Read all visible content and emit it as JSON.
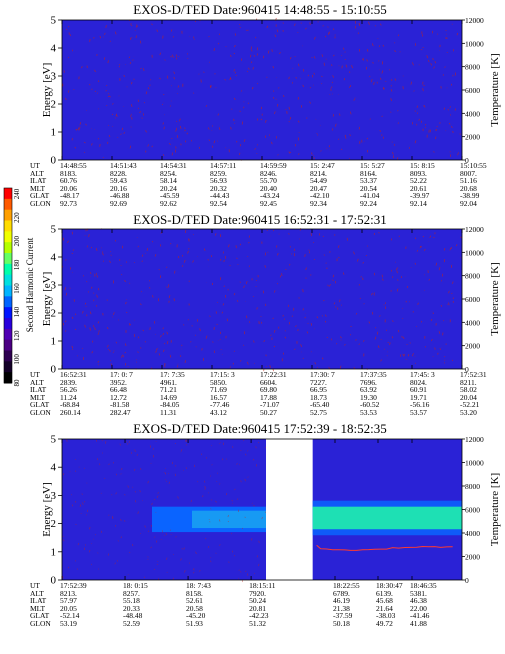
{
  "colorbar": {
    "label": "Second Harmonic Current",
    "ticks": [
      "240",
      "220",
      "200",
      "180",
      "160",
      "140",
      "120",
      "100",
      "80"
    ],
    "colors": [
      "#ff0000",
      "#ff5a00",
      "#ffa000",
      "#ffdc00",
      "#f0ff00",
      "#b4ff00",
      "#64ff64",
      "#00ffaa",
      "#00e0e0",
      "#00b4ff",
      "#0064ff",
      "#0014ff",
      "#2800dc",
      "#5000b4",
      "#4b0082",
      "#2d0050",
      "#140028",
      "#000000"
    ]
  },
  "panels": [
    {
      "title": "EXOS-D/TED   Date:960415   14:48:55 - 15:10:55",
      "ylabel": "Energy [eV]",
      "y2label": "Temperature [K]",
      "yticks": [
        "0",
        "1",
        "2",
        "3",
        "4",
        "5"
      ],
      "y2ticks": [
        "0",
        "2000",
        "4000",
        "6000",
        "8000",
        "10000",
        "12000"
      ],
      "rows": [
        "UT",
        "ALT",
        "ILAT",
        "MLT",
        "GLAT",
        "GLON"
      ],
      "cols": [
        [
          "14:48:55",
          "8183.",
          "60.76",
          "20.06",
          "-48.17",
          "92.73"
        ],
        [
          "14:51:43",
          "8228.",
          "59.43",
          "20.16",
          "-46.88",
          "92.69"
        ],
        [
          "14:54:31",
          "8254.",
          "58.14",
          "20.24",
          "-45.59",
          "92.62"
        ],
        [
          "14:57:11",
          "8259.",
          "56.93",
          "20.32",
          "-44.43",
          "92.54"
        ],
        [
          "14:59:59",
          "8246.",
          "55.70",
          "20.40",
          "-43.24",
          "92.45"
        ],
        [
          "15: 2:47",
          "8214.",
          "54.49",
          "20.47",
          "-42.10",
          "92.34"
        ],
        [
          "15: 5:27",
          "8164.",
          "53.37",
          "20.54",
          "-41.04",
          "92.24"
        ],
        [
          "15: 8:15",
          "8093.",
          "52.22",
          "20.61",
          "-39.97",
          "92.14"
        ],
        [
          "15:10:55",
          "8007.",
          "51.16",
          "20.68",
          "-38.99",
          "92.04"
        ]
      ]
    },
    {
      "title": "EXOS-D/TED   Date:960415   16:52:31 - 17:52:31",
      "ylabel": "Energy [eV]",
      "y2label": "Temperature [K]",
      "yticks": [
        "0",
        "1",
        "2",
        "3",
        "4",
        "5"
      ],
      "y2ticks": [
        "0",
        "2000",
        "4000",
        "6000",
        "8000",
        "10000",
        "12000"
      ],
      "rows": [
        "UT",
        "ALT",
        "ILAT",
        "MLT",
        "GLAT",
        "GLON"
      ],
      "cols": [
        [
          "16:52:31",
          "2839.",
          "56.26",
          "11.24",
          "-68.84",
          "260.14"
        ],
        [
          "17: 0: 7",
          "3952.",
          "66.48",
          "12.72",
          "-81.58",
          "282.47"
        ],
        [
          "17: 7:35",
          "4961.",
          "71.21",
          "14.69",
          "-84.05",
          "11.31"
        ],
        [
          "17:15: 3",
          "5850.",
          "71.69",
          "16.57",
          "-77.46",
          "43.12"
        ],
        [
          "17:22:31",
          "6604.",
          "69.80",
          "17.88",
          "-71.07",
          "50.27"
        ],
        [
          "17:30: 7",
          "7227.",
          "66.95",
          "18.73",
          "-65.40",
          "52.75"
        ],
        [
          "17:37:35",
          "7696.",
          "63.92",
          "19.30",
          "-60.52",
          "53.53"
        ],
        [
          "17:45: 3",
          "8024.",
          "60.91",
          "19.71",
          "-56.16",
          "53.57"
        ],
        [
          "17:52:31",
          "8211.",
          "58.02",
          "20.04",
          "-52.21",
          "53.20"
        ]
      ]
    },
    {
      "title": "EXOS-D/TED   Date:960415   17:52:39 - 18:52:35",
      "ylabel": "Energy [eV]",
      "y2label": "Temperature [K]",
      "yticks": [
        "0",
        "1",
        "2",
        "3",
        "4",
        "5"
      ],
      "y2ticks": [
        "0",
        "2000",
        "4000",
        "6000",
        "8000",
        "10000",
        "12000"
      ],
      "rows": [
        "UT",
        "ALT",
        "ILAT",
        "MLT",
        "GLAT",
        "GLON"
      ],
      "cols": [
        [
          "17:52:39",
          "8213.",
          "57.97",
          "20.05",
          "-52.14",
          "53.19"
        ],
        [
          "18: 0:15",
          "8257.",
          "55.18",
          "20.33",
          "-48.48",
          "52.59"
        ],
        [
          "18: 7:43",
          "8158.",
          "52.61",
          "20.58",
          "-45.20",
          "51.93"
        ],
        [
          "18:15:11",
          "7920.",
          "50.24",
          "20.81",
          "-42.23",
          "51.32"
        ],
        [
          "18:22:55",
          "6789.",
          "46.19",
          "21.38",
          "-37.59",
          "50.18"
        ],
        [
          "18:30:47",
          "6139.",
          "45.68",
          "21.64",
          "-38.03",
          "49.72"
        ],
        [
          "18:46:35",
          "5381.",
          "46.38",
          "22.00",
          "-41.46",
          "41.88"
        ]
      ]
    }
  ],
  "chart_data": [
    {
      "type": "heatmap",
      "title": "EXOS-D/TED   Date:960415   14:48:55 - 15:10:55",
      "ylabel": "Energy [eV]",
      "y2label": "Temperature [K]",
      "ylim": [
        0,
        5
      ],
      "y2lim": [
        0,
        12000
      ],
      "x": [
        "14:48:55",
        "14:51:43",
        "14:54:31",
        "14:57:11",
        "14:59:59",
        "15: 2:47",
        "15: 5:27",
        "15: 8:15",
        "15:10:55"
      ],
      "background_level": 110,
      "features": []
    },
    {
      "type": "heatmap",
      "title": "EXOS-D/TED   Date:960415   16:52:31 - 17:52:31",
      "ylabel": "Energy [eV]",
      "y2label": "Temperature [K]",
      "ylim": [
        0,
        5
      ],
      "y2lim": [
        0,
        12000
      ],
      "x": [
        "16:52:31",
        "17: 0: 7",
        "17: 7:35",
        "17:15: 3",
        "17:22:31",
        "17:30: 7",
        "17:37:35",
        "17:45: 3",
        "17:52:31"
      ],
      "background_level": 110,
      "features": []
    },
    {
      "type": "heatmap",
      "title": "EXOS-D/TED   Date:960415   17:52:39 - 18:52:35",
      "ylabel": "Energy [eV]",
      "y2label": "Temperature [K]",
      "ylim": [
        0,
        5
      ],
      "y2lim": [
        0,
        12000
      ],
      "x": [
        "17:52:39",
        "18: 0:15",
        "18: 7:43",
        "18:15:11",
        "18:22:55",
        "18:30:47",
        "18:46:35"
      ],
      "background_level": 110,
      "data_gap": [
        "18:15:11",
        "18:22:55"
      ],
      "features": [
        {
          "segment": "left",
          "band_energy_ev": [
            1.7,
            2.6
          ],
          "level": 150
        },
        {
          "segment": "right",
          "band_energy_ev": [
            1.8,
            2.6
          ],
          "level": 175
        },
        {
          "segment": "right",
          "temperature_line_k": 2700
        }
      ]
    }
  ]
}
